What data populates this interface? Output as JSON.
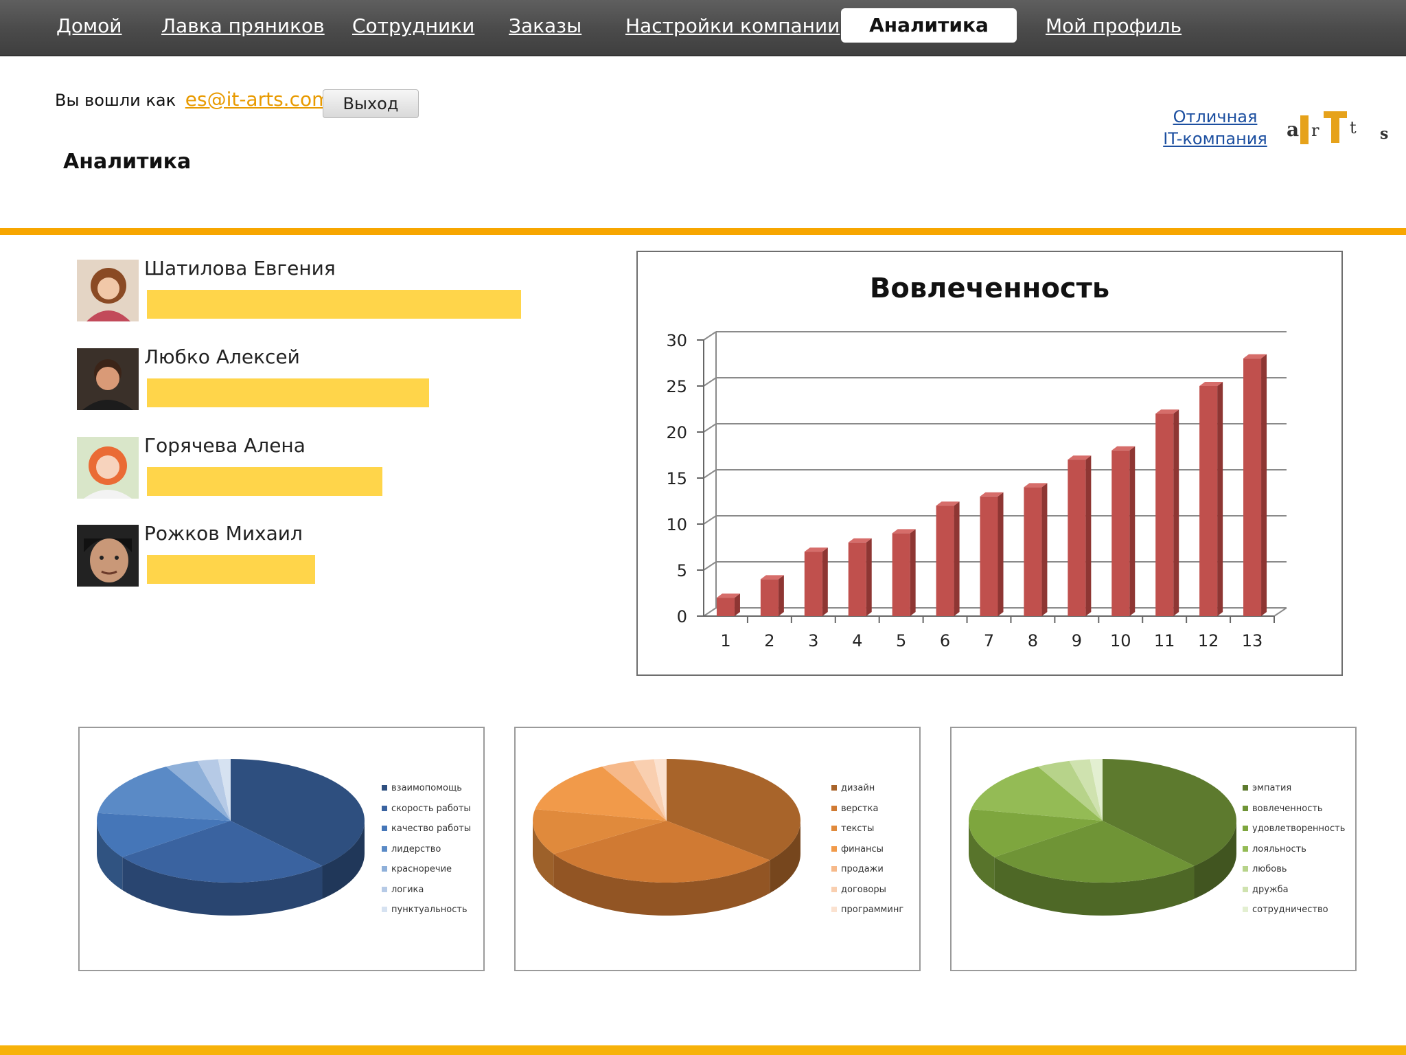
{
  "nav": {
    "items": [
      {
        "label": "Домой",
        "active": false
      },
      {
        "label": "Лавка пряников",
        "active": false
      },
      {
        "label": "Сотрудники",
        "active": false
      },
      {
        "label": "Заказы",
        "active": false
      },
      {
        "label": "Настройки компании",
        "active": false
      },
      {
        "label": "Аналитика",
        "active": true
      },
      {
        "label": "Мой профиль",
        "active": false
      }
    ]
  },
  "header": {
    "logged_in_label": "Вы вошли как",
    "email": "es@it-arts.com",
    "logout_label": "Выход",
    "page_title": "Аналитика",
    "company_link_line1": "Отличная",
    "company_link_line2": "IT-компания",
    "logo_letters": [
      "a",
      "I",
      "r",
      "T",
      "t",
      "s"
    ]
  },
  "people": [
    {
      "name": "Шатилова Евгения",
      "score": 1.0
    },
    {
      "name": "Любко Алексей",
      "score": 0.755
    },
    {
      "name": "Горячева Алена",
      "score": 0.63
    },
    {
      "name": "Рожков Михаил",
      "score": 0.45
    }
  ],
  "colors": {
    "accent": "#f7a600",
    "bar_fill": "#c0504d",
    "person_bar": "#ffd54a",
    "link": "#1c4fa0",
    "email": "#e89a00"
  },
  "chart_data": [
    {
      "type": "bar",
      "title": "Вовлеченность",
      "categories": [
        "1",
        "2",
        "3",
        "4",
        "5",
        "6",
        "7",
        "8",
        "9",
        "10",
        "11",
        "12",
        "13"
      ],
      "values": [
        2,
        4,
        7,
        8,
        9,
        12,
        13,
        14,
        17,
        18,
        22,
        25,
        28
      ],
      "ylim": [
        0,
        30
      ],
      "yticks": [
        "0",
        "5",
        "10",
        "15",
        "20",
        "25",
        "30"
      ],
      "grid": true,
      "legend": "none"
    },
    {
      "type": "pie",
      "series": [
        {
          "name": "взаимопомощь",
          "value": 38,
          "color": "#2e4f7f"
        },
        {
          "name": "скорость работы",
          "value": 27,
          "color": "#3a63a0"
        },
        {
          "name": "качество работы",
          "value": 12,
          "color": "#4576b8"
        },
        {
          "name": "лидерство",
          "value": 15,
          "color": "#5a8ac6"
        },
        {
          "name": "красноречие",
          "value": 4,
          "color": "#8fb0d9"
        },
        {
          "name": "логика",
          "value": 2.5,
          "color": "#b6cae6"
        },
        {
          "name": "пунктуальность",
          "value": 1.5,
          "color": "#d6e2f1"
        }
      ],
      "legend": "right"
    },
    {
      "type": "pie",
      "series": [
        {
          "name": "дизайн",
          "value": 36,
          "color": "#a8642a"
        },
        {
          "name": "верстка",
          "value": 30,
          "color": "#d07a33"
        },
        {
          "name": "тексты",
          "value": 12,
          "color": "#e08a3c"
        },
        {
          "name": "финансы",
          "value": 14,
          "color": "#f19a4a"
        },
        {
          "name": "продажи",
          "value": 4,
          "color": "#f6b98a"
        },
        {
          "name": "договоры",
          "value": 2.5,
          "color": "#f9cfb0"
        },
        {
          "name": "программинг",
          "value": 1.5,
          "color": "#fbe2d0"
        }
      ],
      "legend": "right"
    },
    {
      "type": "pie",
      "series": [
        {
          "name": "эмпатия",
          "value": 38,
          "color": "#5d7a2e"
        },
        {
          "name": "вовлеченность",
          "value": 27,
          "color": "#6f9436"
        },
        {
          "name": "удовлетворенность",
          "value": 13,
          "color": "#7ea63e"
        },
        {
          "name": "лояльность",
          "value": 14,
          "color": "#94bb55"
        },
        {
          "name": "любовь",
          "value": 4,
          "color": "#b7d38a"
        },
        {
          "name": "дружба",
          "value": 2.5,
          "color": "#cfe2af"
        },
        {
          "name": "сотрудничество",
          "value": 1.5,
          "color": "#e3efd1"
        }
      ],
      "legend": "right"
    }
  ]
}
